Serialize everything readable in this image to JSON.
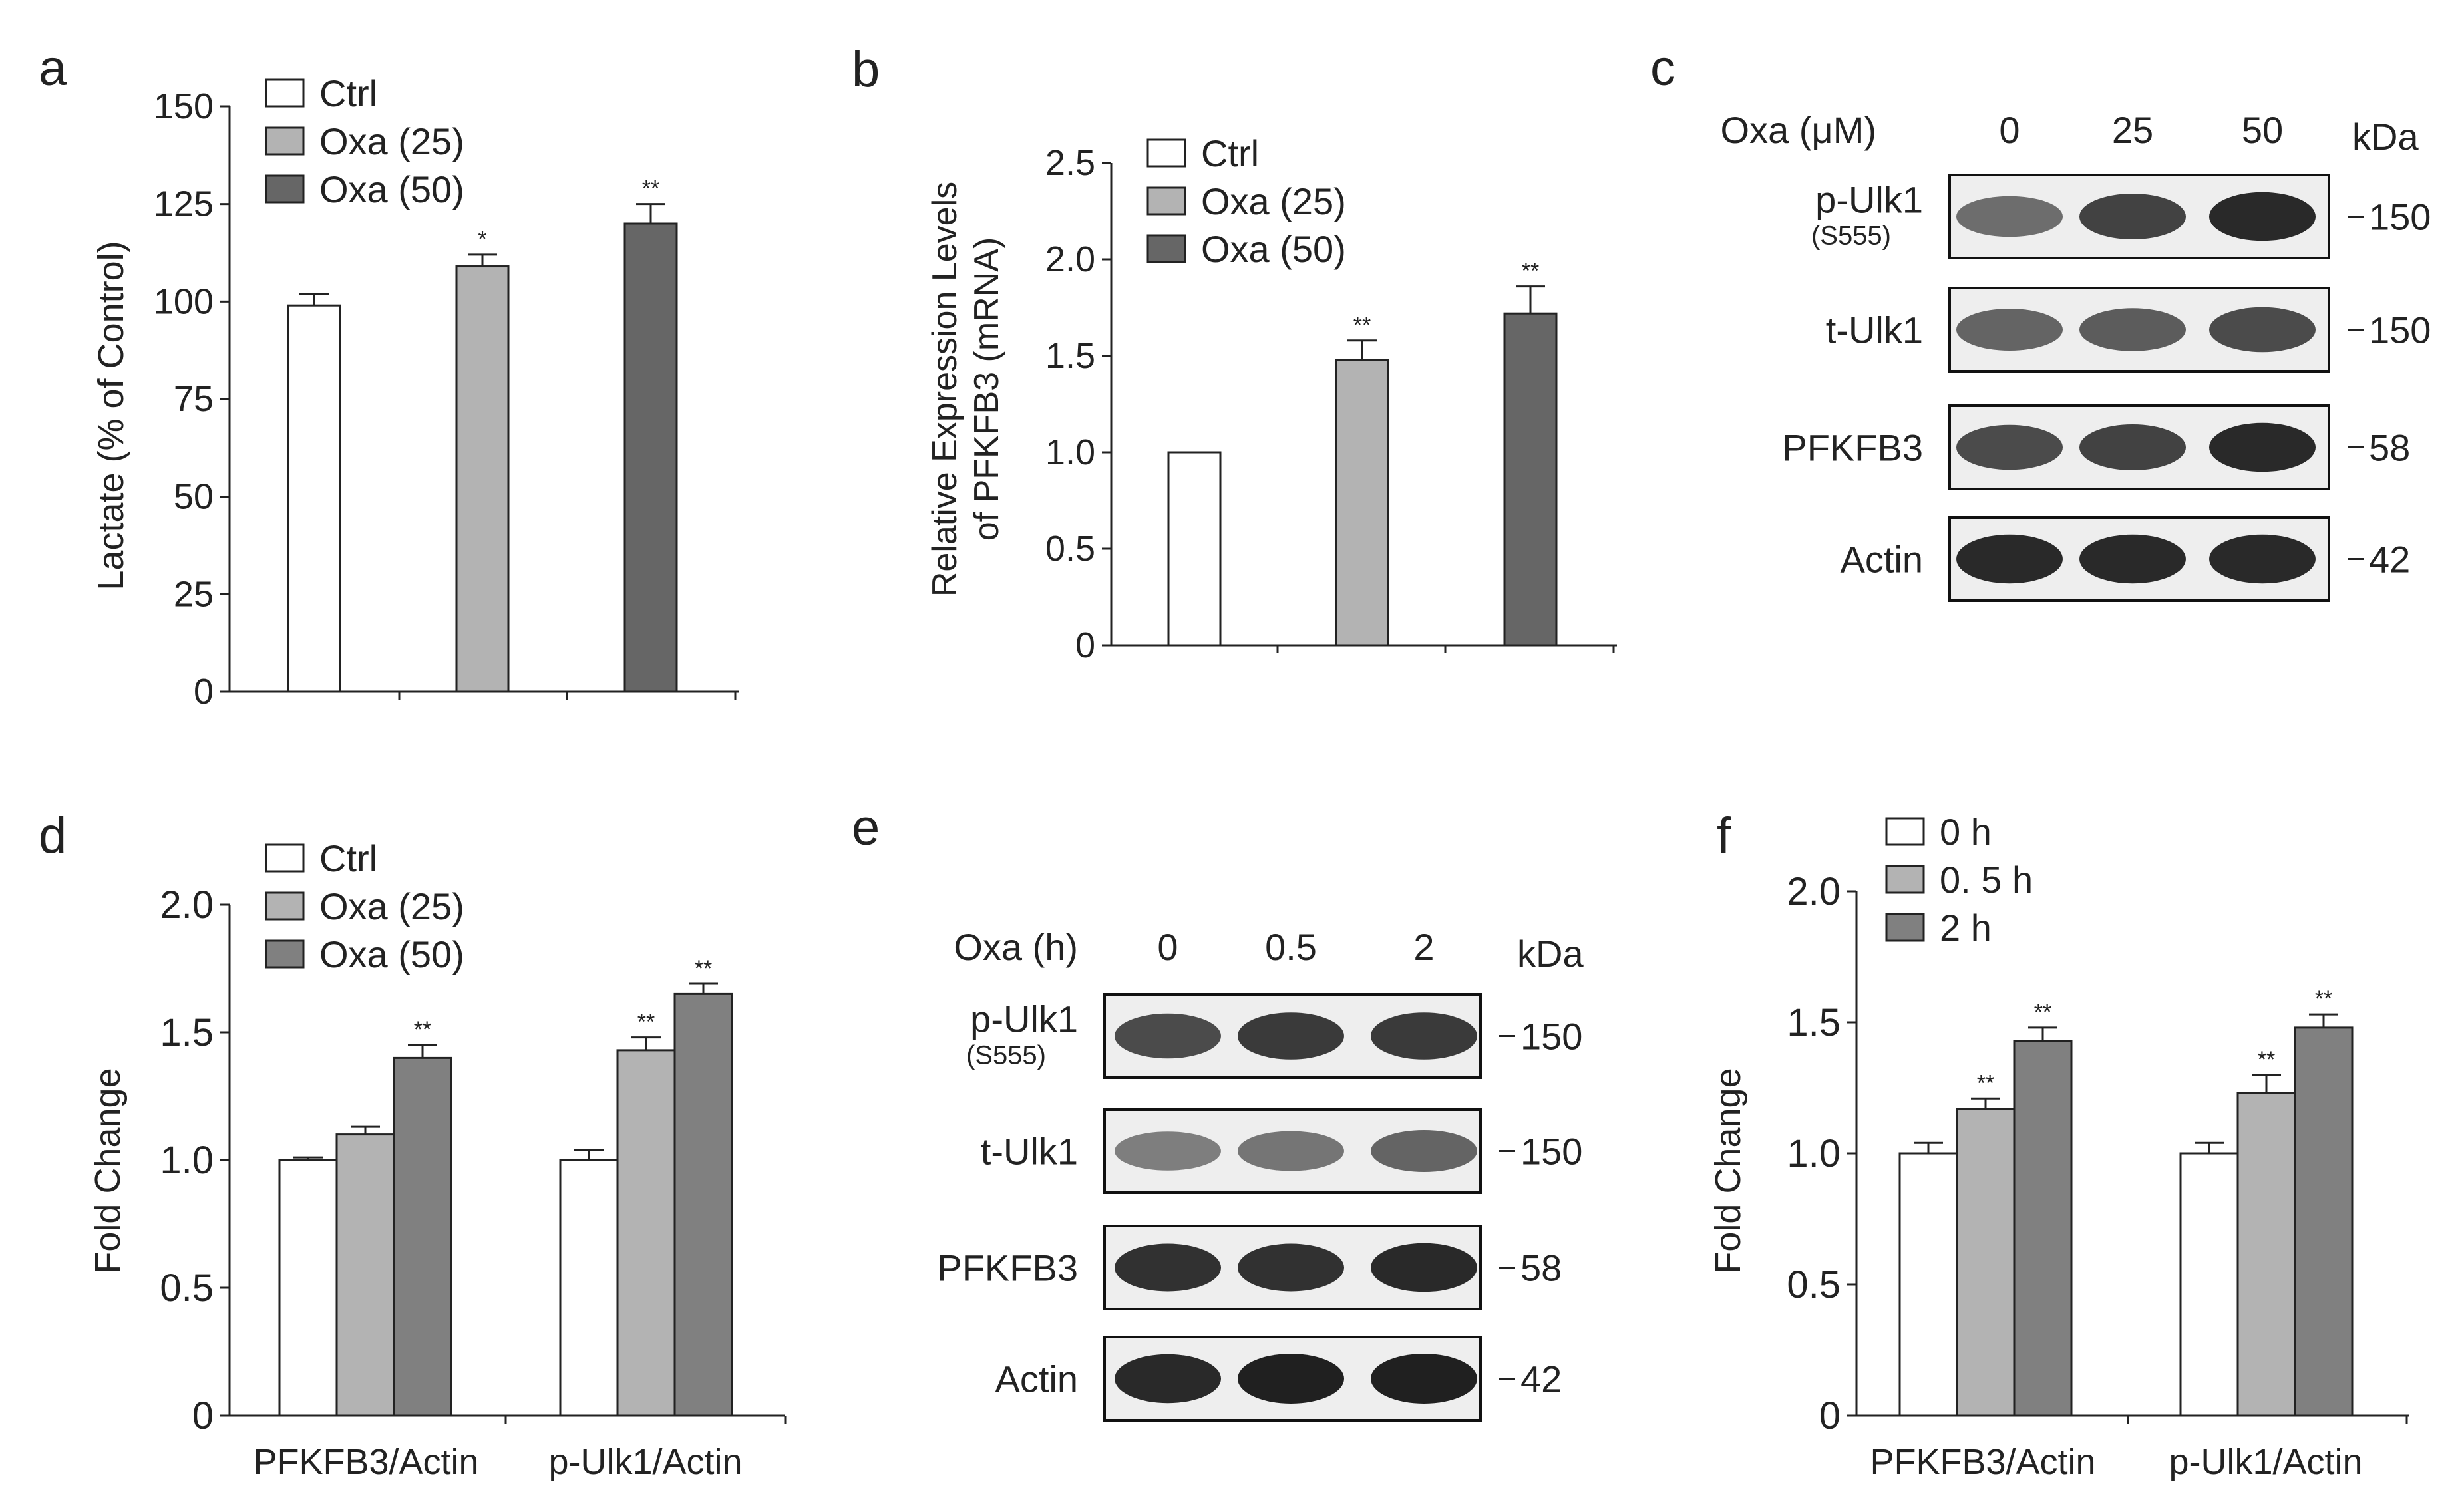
{
  "panels": {
    "a": {
      "letter": "a",
      "chart_data": {
        "type": "bar",
        "categories": [
          "Ctrl",
          "Oxa (25)",
          "Oxa (50)"
        ],
        "values": [
          99,
          109,
          120
        ],
        "errors": [
          3,
          3,
          5
        ],
        "sig": [
          "",
          "*",
          "**"
        ],
        "ylabel": "Lactate (% of Control)",
        "ylim": [
          0,
          150
        ],
        "yticks": [
          0,
          25,
          50,
          75,
          100,
          125,
          150
        ],
        "legend": [
          "Ctrl",
          "Oxa (25)",
          "Oxa (50)"
        ],
        "colors": [
          "#ffffff",
          "#b3b3b3",
          "#666666"
        ]
      }
    },
    "b": {
      "letter": "b",
      "chart_data": {
        "type": "bar",
        "categories": [
          "Ctrl",
          "Oxa (25)",
          "Oxa (50)"
        ],
        "values": [
          1.0,
          1.48,
          1.72
        ],
        "errors": [
          0,
          0.1,
          0.14
        ],
        "sig": [
          "",
          "**",
          "**"
        ],
        "ylabel_line1": "Relative Expression Levels",
        "ylabel_line2": "of PFKFB3 (mRNA)",
        "ylim": [
          0,
          2.5
        ],
        "yticks": [
          "0",
          "0.5",
          "1.0",
          "1.5",
          "2.0",
          "2.5"
        ],
        "legend": [
          "Ctrl",
          "Oxa (25)",
          "Oxa (50)"
        ],
        "colors": [
          "#ffffff",
          "#b3b3b3",
          "#666666"
        ]
      }
    },
    "c": {
      "letter": "c",
      "condition_label": "Oxa (μM)",
      "lanes": [
        "0",
        "25",
        "50"
      ],
      "kda_label": "kDa",
      "rows": [
        {
          "label": "p-Ulk1",
          "sublabel": "(S555)",
          "kda": "150",
          "intensity": [
            0.55,
            0.8,
            0.95
          ]
        },
        {
          "label": "t-Ulk1",
          "sublabel": "",
          "kda": "150",
          "intensity": [
            0.6,
            0.65,
            0.75
          ]
        },
        {
          "label": "PFKFB3",
          "sublabel": "",
          "kda": "58",
          "intensity": [
            0.75,
            0.8,
            0.95
          ]
        },
        {
          "label": "Actin",
          "sublabel": "",
          "kda": "42",
          "intensity": [
            0.95,
            0.95,
            0.95
          ]
        }
      ]
    },
    "d": {
      "letter": "d",
      "chart_data": {
        "type": "bar",
        "categories": [
          "PFKFB3/Actin",
          "p-Ulk1/Actin"
        ],
        "series": [
          {
            "name": "Ctrl",
            "values": [
              1.0,
              1.0
            ],
            "errors": [
              0.01,
              0.04
            ],
            "sig": [
              "",
              ""
            ]
          },
          {
            "name": "Oxa (25)",
            "values": [
              1.1,
              1.43
            ],
            "errors": [
              0.03,
              0.05
            ],
            "sig": [
              "",
              "**"
            ]
          },
          {
            "name": "Oxa (50)",
            "values": [
              1.4,
              1.65
            ],
            "errors": [
              0.05,
              0.04
            ],
            "sig": [
              "**",
              "**"
            ]
          }
        ],
        "ylabel": "Fold Change",
        "ylim": [
          0,
          2.0
        ],
        "yticks": [
          "0",
          "0.5",
          "1.0",
          "1.5",
          "2.0"
        ],
        "colors": [
          "#ffffff",
          "#b3b3b3",
          "#808080"
        ]
      }
    },
    "e": {
      "letter": "e",
      "condition_label": "Oxa (h)",
      "lanes": [
        "0",
        "0.5",
        "2"
      ],
      "kda_label": "kDa",
      "rows": [
        {
          "label": "p-Ulk1",
          "sublabel": "(S555)",
          "kda": "150",
          "intensity": [
            0.75,
            0.85,
            0.85
          ]
        },
        {
          "label": "t-Ulk1",
          "sublabel": "",
          "kda": "150",
          "intensity": [
            0.45,
            0.5,
            0.6
          ]
        },
        {
          "label": "PFKFB3",
          "sublabel": "",
          "kda": "58",
          "intensity": [
            0.9,
            0.9,
            0.95
          ]
        },
        {
          "label": "Actin",
          "sublabel": "",
          "kda": "42",
          "intensity": [
            0.95,
            1.0,
            1.0
          ]
        }
      ]
    },
    "f": {
      "letter": "f",
      "chart_data": {
        "type": "bar",
        "categories": [
          "PFKFB3/Actin",
          "p-Ulk1/Actin"
        ],
        "series": [
          {
            "name": "0 h",
            "values": [
              1.0,
              1.0
            ],
            "errors": [
              0.04,
              0.04
            ],
            "sig": [
              "",
              ""
            ]
          },
          {
            "name": "0. 5 h",
            "values": [
              1.17,
              1.23
            ],
            "errors": [
              0.04,
              0.07
            ],
            "sig": [
              "**",
              "**"
            ]
          },
          {
            "name": "2 h",
            "values": [
              1.43,
              1.48
            ],
            "errors": [
              0.05,
              0.05
            ],
            "sig": [
              "**",
              "**"
            ]
          }
        ],
        "ylabel": "Fold Change",
        "ylim": [
          0,
          2.0
        ],
        "yticks": [
          "0",
          "0.5",
          "1.0",
          "1.5",
          "2.0"
        ],
        "colors": [
          "#ffffff",
          "#b3b3b3",
          "#808080"
        ]
      }
    }
  }
}
